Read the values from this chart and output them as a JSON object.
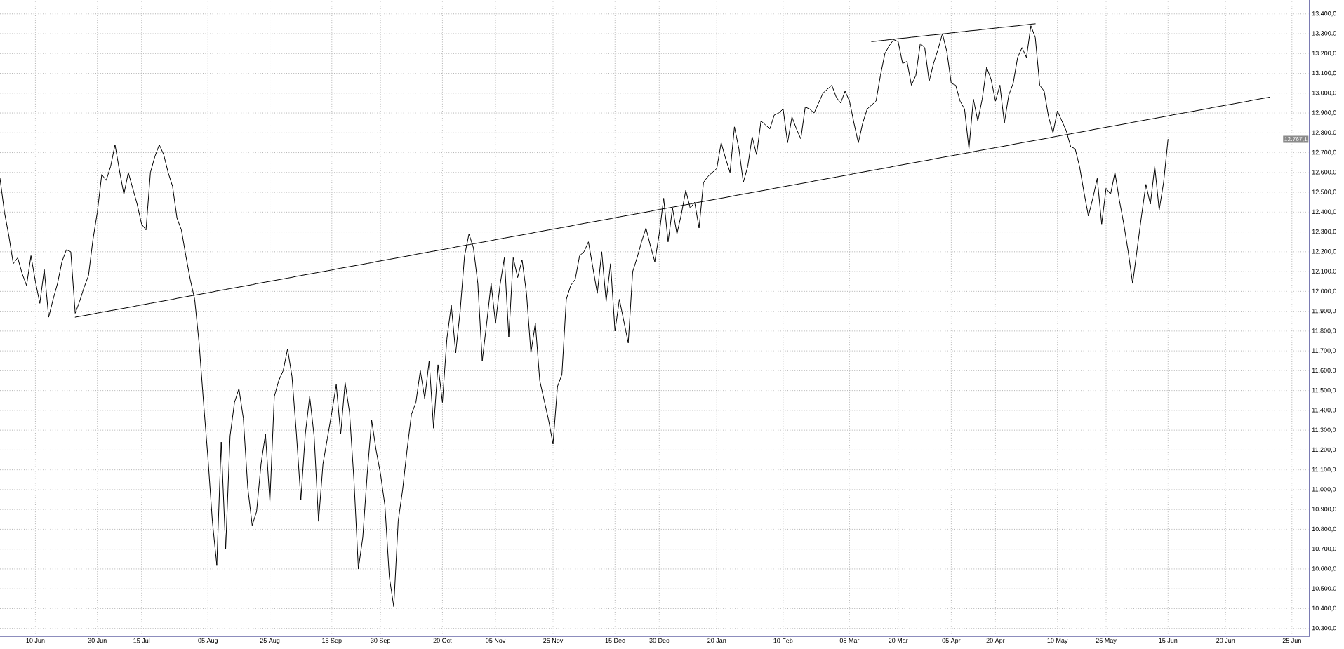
{
  "chart_data": {
    "type": "line",
    "categories": [
      null,
      null,
      null,
      null,
      null,
      null,
      null,
      null,
      "10 Jun",
      null,
      null,
      null,
      null,
      null,
      null,
      null,
      null,
      null,
      null,
      null,
      null,
      null,
      "30 Jun",
      null,
      null,
      null,
      null,
      null,
      null,
      null,
      null,
      null,
      "15 Jul",
      null,
      null,
      null,
      null,
      null,
      null,
      null,
      null,
      null,
      null,
      null,
      null,
      null,
      null,
      "05 Aug",
      null,
      null,
      null,
      null,
      null,
      null,
      null,
      null,
      null,
      null,
      null,
      null,
      null,
      "25 Aug",
      null,
      null,
      null,
      null,
      null,
      null,
      null,
      null,
      null,
      null,
      null,
      null,
      null,
      "15 Sep",
      null,
      null,
      null,
      null,
      null,
      null,
      null,
      null,
      null,
      null,
      "30 Sep",
      null,
      null,
      null,
      null,
      null,
      null,
      null,
      null,
      null,
      null,
      null,
      null,
      null,
      "20 Oct",
      null,
      null,
      null,
      null,
      null,
      null,
      null,
      null,
      null,
      null,
      null,
      "05 Nov",
      null,
      null,
      null,
      null,
      null,
      null,
      null,
      null,
      null,
      null,
      null,
      null,
      "25 Nov",
      null,
      null,
      null,
      null,
      null,
      null,
      null,
      null,
      null,
      null,
      null,
      null,
      null,
      "15 Dec",
      null,
      null,
      null,
      null,
      null,
      null,
      null,
      null,
      null,
      "30 Dec",
      null,
      null,
      null,
      null,
      null,
      null,
      null,
      null,
      null,
      null,
      null,
      null,
      "20 Jan",
      null,
      null,
      null,
      null,
      null,
      null,
      null,
      null,
      null,
      null,
      null,
      null,
      null,
      null,
      "10 Feb",
      null,
      null,
      null,
      null,
      null,
      null,
      null,
      null,
      null,
      null,
      null,
      null,
      null,
      null,
      "05 Mar",
      null,
      null,
      null,
      null,
      null,
      null,
      null,
      null,
      null,
      null,
      "20 Mar",
      null,
      null,
      null,
      null,
      null,
      null,
      null,
      null,
      null,
      null,
      null,
      "05 Apr",
      null,
      null,
      null,
      null,
      null,
      null,
      null,
      null,
      null,
      "20 Apr",
      null,
      null,
      null,
      null,
      null,
      null,
      null,
      null,
      null,
      null,
      null,
      null,
      null,
      "10 May",
      null,
      null,
      null,
      null,
      null,
      null,
      null,
      null,
      null,
      null,
      "25 May",
      null,
      null,
      null,
      null,
      null,
      null,
      null,
      null,
      null,
      null,
      null,
      null,
      null,
      "15 Jun",
      null,
      null,
      null,
      null,
      null,
      null,
      null,
      null,
      null,
      null,
      null,
      null,
      "20 Jun",
      null,
      null,
      null,
      null,
      null,
      null,
      null,
      null,
      null,
      null,
      null,
      null,
      null,
      null,
      "25 Jun",
      null,
      null,
      null,
      null
    ],
    "ylim": [
      10260,
      13470
    ],
    "yticks": [
      {
        "value": 10300,
        "label": "10.300,0"
      },
      {
        "value": 10400,
        "label": "10.400,0"
      },
      {
        "value": 10500,
        "label": "10.500,0"
      },
      {
        "value": 10600,
        "label": "10.600,0"
      },
      {
        "value": 10700,
        "label": "10.700,0"
      },
      {
        "value": 10800,
        "label": "10.800,0"
      },
      {
        "value": 10900,
        "label": "10.900,0"
      },
      {
        "value": 11000,
        "label": "11.000,0"
      },
      {
        "value": 11100,
        "label": "11.100,0"
      },
      {
        "value": 11200,
        "label": "11.200,0"
      },
      {
        "value": 11300,
        "label": "11.300,0"
      },
      {
        "value": 11400,
        "label": "11.400,0"
      },
      {
        "value": 11500,
        "label": "11.500,0"
      },
      {
        "value": 11600,
        "label": "11.600,0"
      },
      {
        "value": 11700,
        "label": "11.700,0"
      },
      {
        "value": 11800,
        "label": "11.800,0"
      },
      {
        "value": 11900,
        "label": "11.900,0"
      },
      {
        "value": 12000,
        "label": "12.000,0"
      },
      {
        "value": 12100,
        "label": "12.100,0"
      },
      {
        "value": 12200,
        "label": "12.200,0"
      },
      {
        "value": 12300,
        "label": "12.300,0"
      },
      {
        "value": 12400,
        "label": "12.400,0"
      },
      {
        "value": 12500,
        "label": "12.500,0"
      },
      {
        "value": 12600,
        "label": "12.600,0"
      },
      {
        "value": 12700,
        "label": "12.700,0"
      },
      {
        "value": 12800,
        "label": "12.800,0"
      },
      {
        "value": 12900,
        "label": "12.900,0"
      },
      {
        "value": 13000,
        "label": "13.000,0"
      },
      {
        "value": 13100,
        "label": "13.100,0"
      },
      {
        "value": 13200,
        "label": "13.200,0"
      },
      {
        "value": 13300,
        "label": "13.300,0"
      },
      {
        "value": 13400,
        "label": "13.400,0"
      }
    ],
    "grid": true,
    "series": [
      {
        "color": "#000000",
        "values": [
          12570,
          12400,
          12280,
          12140,
          12170,
          12090,
          12030,
          12180,
          12050,
          11940,
          12110,
          11870,
          11960,
          12040,
          12150,
          12210,
          12200,
          11890,
          11950,
          12020,
          12080,
          12260,
          12400,
          12590,
          12560,
          12630,
          12740,
          12610,
          12490,
          12600,
          12520,
          12440,
          12340,
          12310,
          12600,
          12680,
          12740,
          12690,
          12600,
          12530,
          12370,
          12310,
          12180,
          12060,
          11960,
          11740,
          11440,
          11160,
          10840,
          10620,
          11240,
          10700,
          11270,
          11440,
          11510,
          11360,
          11010,
          10820,
          10890,
          11130,
          11280,
          10940,
          11470,
          11550,
          11600,
          11710,
          11570,
          11280,
          10950,
          11280,
          11470,
          11270,
          10840,
          11130,
          11260,
          11390,
          11530,
          11280,
          11540,
          11390,
          11050,
          10600,
          10760,
          11080,
          11350,
          11200,
          11080,
          10920,
          10560,
          10410,
          10840,
          11000,
          11200,
          11380,
          11440,
          11600,
          11460,
          11650,
          11310,
          11630,
          11440,
          11760,
          11930,
          11690,
          11900,
          12180,
          12290,
          12220,
          12040,
          11650,
          11840,
          12040,
          11840,
          12030,
          12170,
          11770,
          12170,
          12070,
          12160,
          11990,
          11690,
          11840,
          11550,
          11450,
          11350,
          11230,
          11520,
          11580,
          11960,
          12030,
          12060,
          12180,
          12200,
          12250,
          12120,
          11990,
          12200,
          11950,
          12140,
          11800,
          11960,
          11850,
          11740,
          12100,
          12170,
          12250,
          12320,
          12230,
          12150,
          12290,
          12470,
          12250,
          12420,
          12290,
          12390,
          12510,
          12420,
          12450,
          12320,
          12550,
          12580,
          12600,
          12620,
          12750,
          12670,
          12600,
          12830,
          12720,
          12550,
          12630,
          12780,
          12690,
          12860,
          12840,
          12820,
          12890,
          12900,
          12920,
          12750,
          12880,
          12820,
          12770,
          12930,
          12920,
          12900,
          12950,
          13000,
          13020,
          13040,
          12980,
          12950,
          13010,
          12960,
          12850,
          12750,
          12850,
          12920,
          12940,
          12960,
          13090,
          13200,
          13240,
          13270,
          13260,
          13150,
          13160,
          13040,
          13090,
          13250,
          13230,
          13060,
          13150,
          13220,
          13300,
          13210,
          13050,
          13040,
          12960,
          12920,
          12720,
          12970,
          12860,
          12970,
          13130,
          13070,
          12960,
          13040,
          12850,
          12990,
          13050,
          13180,
          13230,
          13180,
          13340,
          13280,
          13040,
          13010,
          12880,
          12800,
          12910,
          12860,
          12810,
          12730,
          12720,
          12630,
          12500,
          12380,
          12470,
          12570,
          12340,
          12520,
          12490,
          12600,
          12460,
          12340,
          12200,
          12040,
          12210,
          12380,
          12540,
          12440,
          12630,
          12410,
          12550,
          12767.1,
          null,
          null,
          null,
          null,
          null,
          null,
          null,
          null,
          null,
          null,
          null,
          null,
          null,
          null,
          null,
          null,
          null,
          null,
          null,
          null,
          null,
          null,
          null,
          null,
          null,
          null,
          null,
          null,
          null,
          null,
          null,
          null
        ]
      },
      {
        "color": "#000000",
        "values": [
          null,
          null,
          null,
          null,
          null,
          null,
          null,
          null,
          null,
          null,
          null,
          null,
          null,
          null,
          null,
          null,
          null,
          11870,
          11874,
          11878,
          11882,
          11886,
          11891,
          11895,
          11899,
          11903,
          11907,
          11911,
          11915,
          11919,
          11923,
          11928,
          11932,
          11936,
          11940,
          11944,
          11948,
          11952,
          11956,
          11960,
          11965,
          11969,
          11973,
          11977,
          11981,
          11985,
          11989,
          11993,
          11997,
          12002,
          12006,
          12010,
          12014,
          12018,
          12022,
          12026,
          12030,
          12034,
          12039,
          12043,
          12047,
          12051,
          12055,
          12059,
          12063,
          12067,
          12071,
          12076,
          12080,
          12084,
          12088,
          12092,
          12096,
          12100,
          12104,
          12108,
          12113,
          12117,
          12121,
          12125,
          12129,
          12133,
          12137,
          12141,
          12145,
          12150,
          12154,
          12158,
          12162,
          12166,
          12170,
          12174,
          12178,
          12182,
          12187,
          12191,
          12195,
          12199,
          12203,
          12207,
          12211,
          12215,
          12219,
          12224,
          12228,
          12232,
          12236,
          12240,
          12244,
          12248,
          12252,
          12256,
          12261,
          12265,
          12269,
          12273,
          12277,
          12281,
          12285,
          12289,
          12293,
          12298,
          12302,
          12306,
          12310,
          12314,
          12318,
          12322,
          12326,
          12330,
          12335,
          12339,
          12343,
          12347,
          12351,
          12355,
          12359,
          12363,
          12367,
          12372,
          12376,
          12380,
          12384,
          12388,
          12392,
          12396,
          12400,
          12404,
          12409,
          12413,
          12417,
          12421,
          12425,
          12429,
          12433,
          12437,
          12441,
          12446,
          12450,
          12454,
          12458,
          12462,
          12466,
          12470,
          12474,
          12478,
          12483,
          12487,
          12491,
          12495,
          12499,
          12503,
          12507,
          12511,
          12515,
          12520,
          12524,
          12528,
          12532,
          12536,
          12540,
          12544,
          12548,
          12552,
          12557,
          12561,
          12565,
          12569,
          12573,
          12577,
          12581,
          12585,
          12589,
          12594,
          12598,
          12602,
          12606,
          12610,
          12614,
          12618,
          12622,
          12626,
          12631,
          12635,
          12639,
          12643,
          12647,
          12651,
          12655,
          12659,
          12663,
          12668,
          12672,
          12676,
          12680,
          12684,
          12688,
          12692,
          12696,
          12700,
          12705,
          12709,
          12713,
          12717,
          12721,
          12725,
          12729,
          12733,
          12737,
          12742,
          12746,
          12750,
          12754,
          12758,
          12762,
          12766,
          12770,
          12774,
          12779,
          12783,
          12787,
          12791,
          12795,
          12799,
          12803,
          12807,
          12811,
          12816,
          12820,
          12824,
          12828,
          12832,
          12836,
          12840,
          12844,
          12848,
          12853,
          12857,
          12861,
          12865,
          12869,
          12873,
          12877,
          12881,
          12885,
          12890,
          12894,
          12898,
          12902,
          12906,
          12910,
          12914,
          12918,
          12922,
          12927,
          12931,
          12935,
          12939,
          12943,
          12947,
          12951,
          12955,
          12959,
          12964,
          12968,
          12972,
          12976,
          12980,
          null,
          null,
          null,
          null,
          null,
          null,
          null,
          null,
          null
        ]
      },
      {
        "color": "#000000",
        "values": [
          null,
          null,
          null,
          null,
          null,
          null,
          null,
          null,
          null,
          null,
          null,
          null,
          null,
          null,
          null,
          null,
          null,
          null,
          null,
          null,
          null,
          null,
          null,
          null,
          null,
          null,
          null,
          null,
          null,
          null,
          null,
          null,
          null,
          null,
          null,
          null,
          null,
          null,
          null,
          null,
          null,
          null,
          null,
          null,
          null,
          null,
          null,
          null,
          null,
          null,
          null,
          null,
          null,
          null,
          null,
          null,
          null,
          null,
          null,
          null,
          null,
          null,
          null,
          null,
          null,
          null,
          null,
          null,
          null,
          null,
          null,
          null,
          null,
          null,
          null,
          null,
          null,
          null,
          null,
          null,
          null,
          null,
          null,
          null,
          null,
          null,
          null,
          null,
          null,
          null,
          null,
          null,
          null,
          null,
          null,
          null,
          null,
          null,
          null,
          null,
          null,
          null,
          null,
          null,
          null,
          null,
          null,
          null,
          null,
          null,
          null,
          null,
          null,
          null,
          null,
          null,
          null,
          null,
          null,
          null,
          null,
          null,
          null,
          null,
          null,
          null,
          null,
          null,
          null,
          null,
          null,
          null,
          null,
          null,
          null,
          null,
          null,
          null,
          null,
          null,
          null,
          null,
          null,
          null,
          null,
          null,
          null,
          null,
          null,
          null,
          null,
          null,
          null,
          null,
          null,
          null,
          null,
          null,
          null,
          null,
          null,
          null,
          null,
          null,
          null,
          null,
          null,
          null,
          null,
          null,
          null,
          null,
          null,
          null,
          null,
          null,
          null,
          null,
          null,
          null,
          null,
          null,
          null,
          null,
          null,
          null,
          null,
          null,
          null,
          null,
          null,
          null,
          null,
          null,
          null,
          null,
          null,
          13260,
          13262,
          13265,
          13267,
          13270,
          13272,
          13275,
          13277,
          13279,
          13282,
          13284,
          13287,
          13289,
          13292,
          13294,
          13296,
          13299,
          13301,
          13304,
          13306,
          13309,
          13311,
          13314,
          13316,
          13318,
          13321,
          13323,
          13326,
          13328,
          13331,
          13333,
          13335,
          13338,
          13340,
          13343,
          13345,
          13348,
          13350,
          null,
          null,
          null,
          null,
          null,
          null,
          null,
          null,
          null,
          null,
          null,
          null,
          null,
          null,
          null,
          null,
          null,
          null,
          null,
          null,
          null,
          null,
          null,
          null,
          null,
          null,
          null,
          null,
          null,
          null,
          null,
          null,
          null,
          null,
          null,
          null,
          null,
          null,
          null,
          null,
          null,
          null,
          null,
          null,
          null,
          null,
          null,
          null,
          null,
          null,
          null,
          null,
          null,
          null,
          null,
          null,
          null,
          null,
          null,
          null,
          null,
          null
        ]
      }
    ],
    "annotations": [
      "12.767,1"
    ]
  }
}
